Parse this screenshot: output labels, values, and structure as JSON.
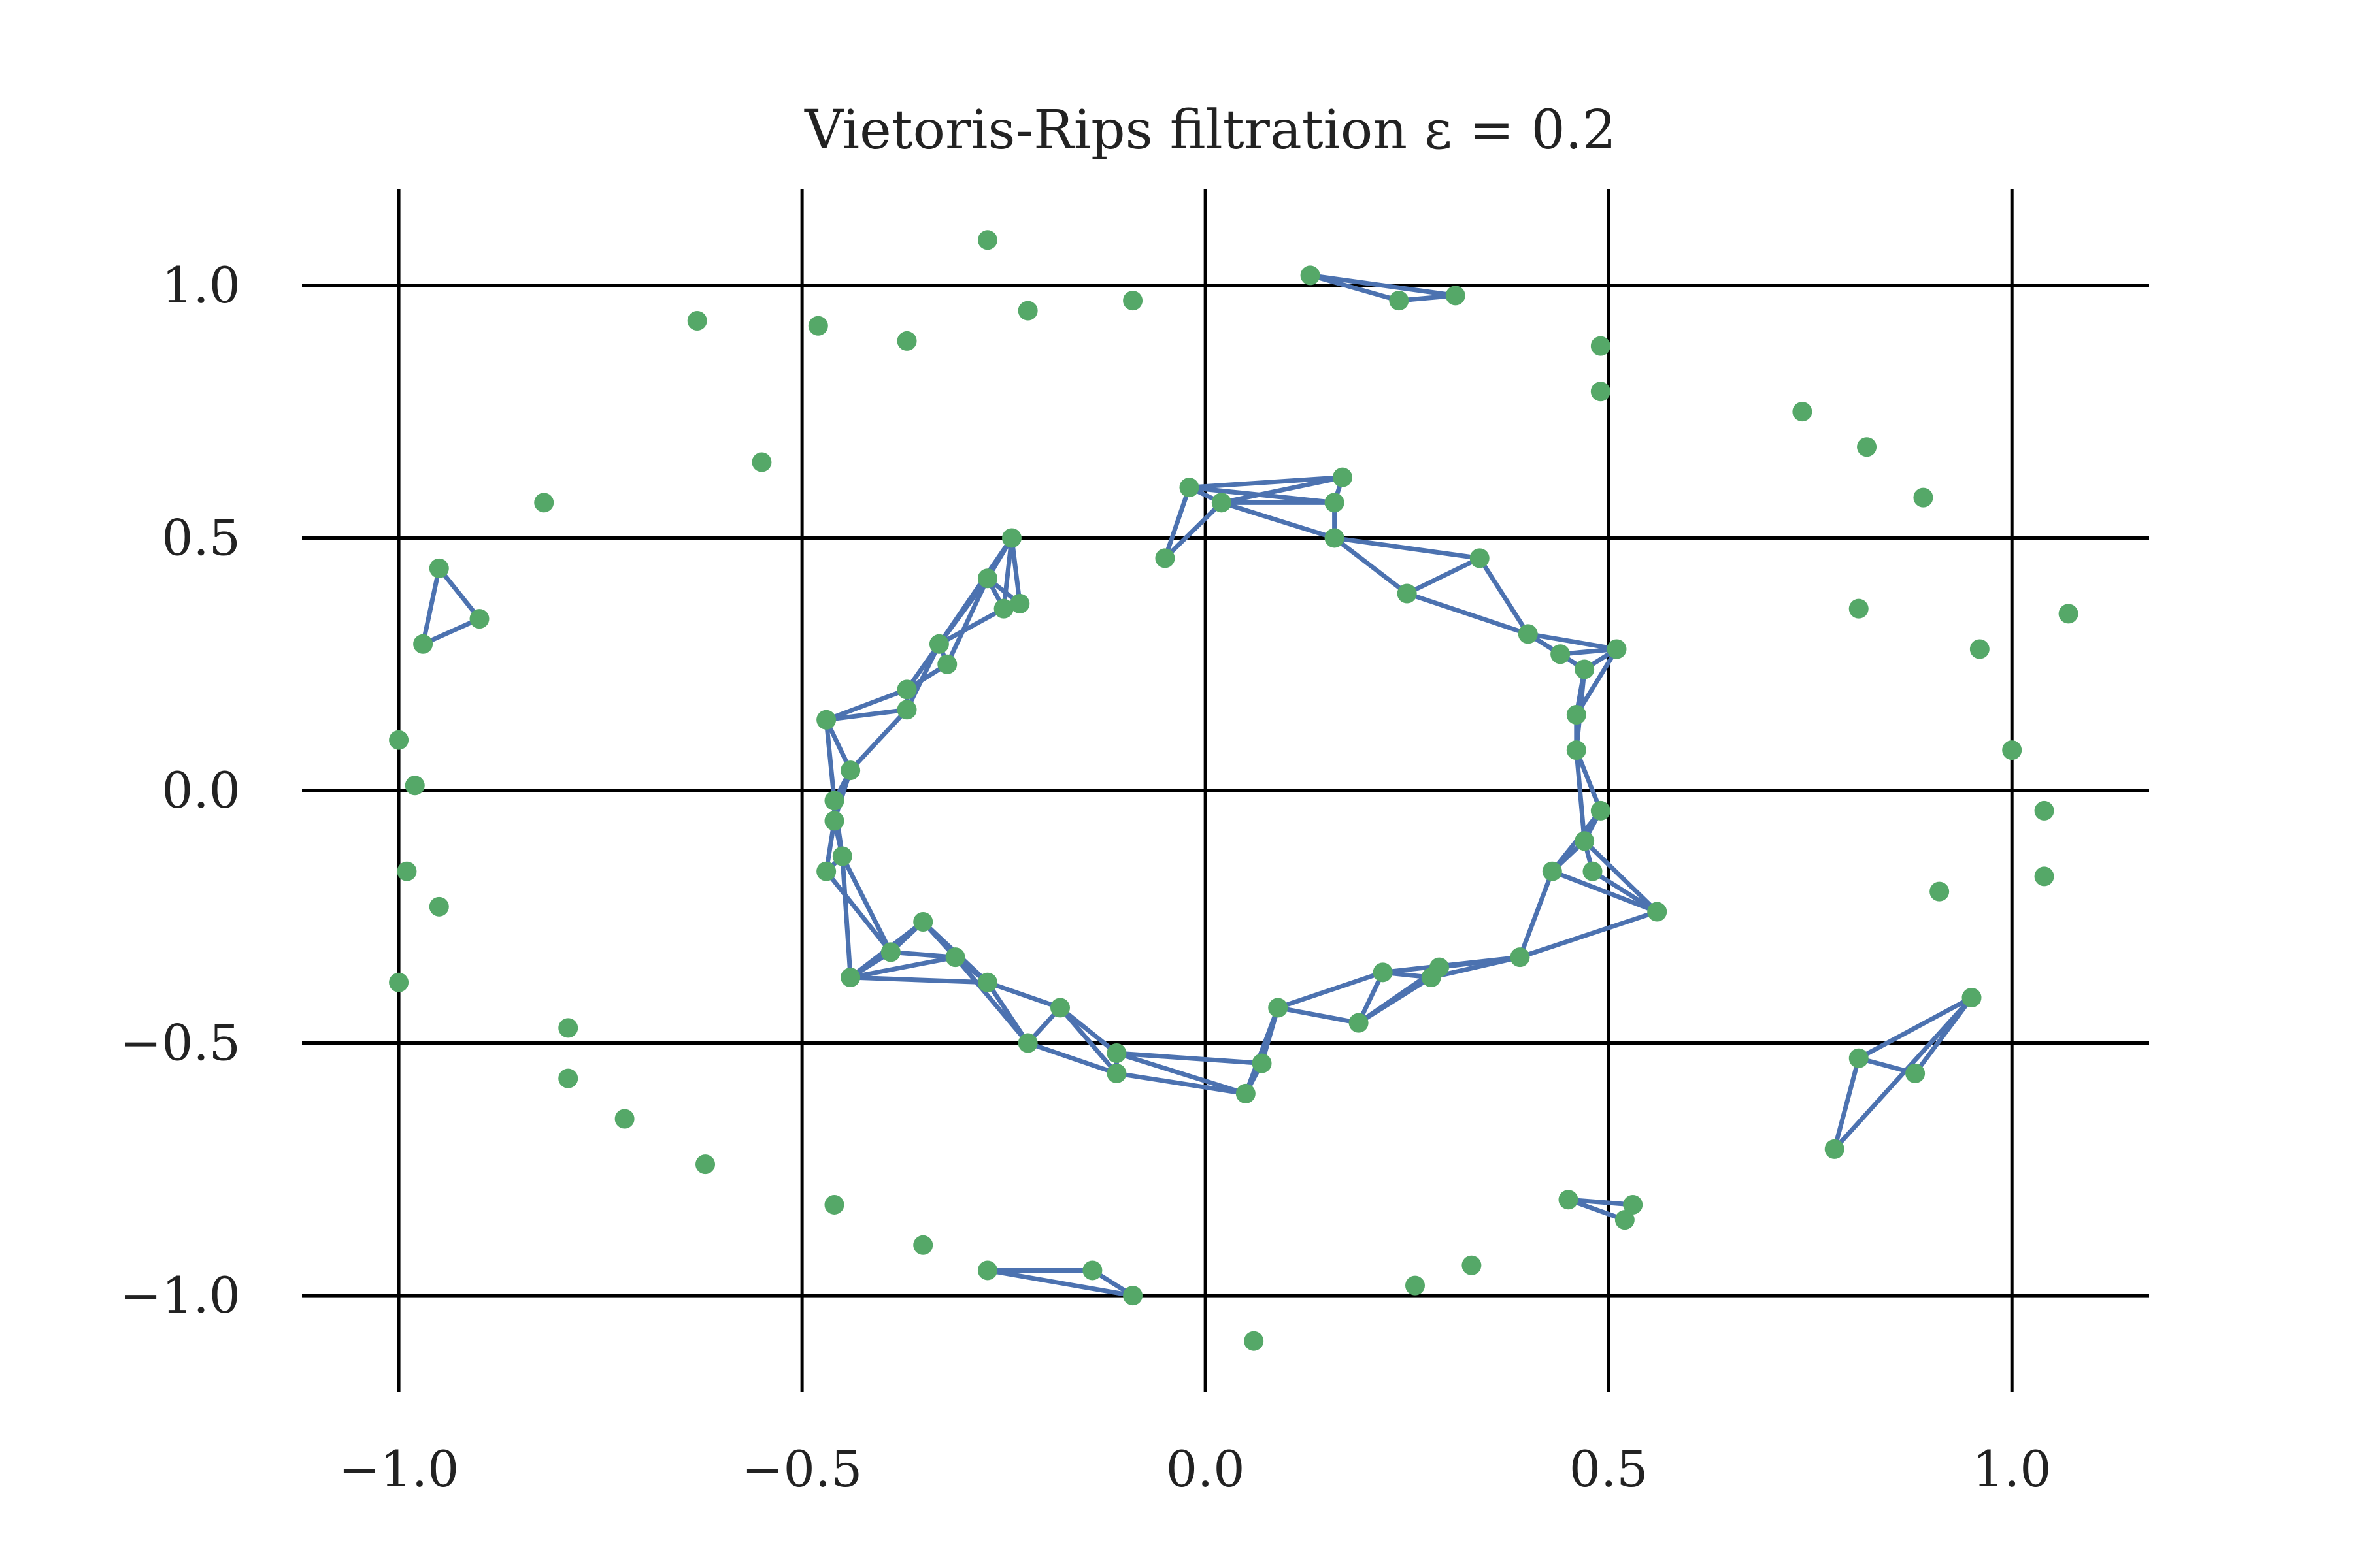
{
  "chart_data": {
    "type": "scatter",
    "title": "Vietoris-Rips filtration ε = 0.2",
    "xlabel": "",
    "ylabel": "",
    "xlim": [
      -1.12,
      1.17
    ],
    "ylim": [
      -1.19,
      1.19
    ],
    "grid": true,
    "x_ticks": [
      -1.0,
      -0.5,
      0.0,
      0.5,
      1.0
    ],
    "x_tick_labels": [
      "−1.0",
      "−0.5",
      "0.0",
      "0.5",
      "1.0"
    ],
    "y_ticks": [
      1.0,
      0.5,
      0.0,
      -0.5,
      -1.0
    ],
    "y_tick_labels": [
      "1.0",
      "0.5",
      "0.0",
      "−0.5",
      "−1.0"
    ],
    "colors": {
      "points": "#55a868",
      "edges": "#4c72b0",
      "grid": "#000000"
    },
    "points": [
      {
        "x": 0.13,
        "y": 1.02
      },
      {
        "x": 0.24,
        "y": 0.97
      },
      {
        "x": 0.31,
        "y": 0.98
      },
      {
        "x": 0.49,
        "y": 0.88
      },
      {
        "x": 0.49,
        "y": 0.79
      },
      {
        "x": 0.74,
        "y": 0.75
      },
      {
        "x": 0.82,
        "y": 0.68
      },
      {
        "x": 0.89,
        "y": 0.58
      },
      {
        "x": 0.81,
        "y": 0.36
      },
      {
        "x": 0.96,
        "y": 0.28
      },
      {
        "x": 1.07,
        "y": 0.35
      },
      {
        "x": 1.0,
        "y": 0.08
      },
      {
        "x": 1.04,
        "y": -0.04
      },
      {
        "x": 1.04,
        "y": -0.17
      },
      {
        "x": 0.91,
        "y": -0.2
      },
      {
        "x": 0.95,
        "y": -0.41
      },
      {
        "x": 0.81,
        "y": -0.53
      },
      {
        "x": 0.88,
        "y": -0.56
      },
      {
        "x": 0.78,
        "y": -0.71
      },
      {
        "x": 0.45,
        "y": -0.81
      },
      {
        "x": 0.52,
        "y": -0.85
      },
      {
        "x": 0.53,
        "y": -0.82
      },
      {
        "x": 0.33,
        "y": -0.94
      },
      {
        "x": 0.26,
        "y": -0.98
      },
      {
        "x": 0.06,
        "y": -1.09
      },
      {
        "x": -0.09,
        "y": -1.0
      },
      {
        "x": -0.14,
        "y": -0.95
      },
      {
        "x": -0.27,
        "y": -0.95
      },
      {
        "x": -0.35,
        "y": -0.9
      },
      {
        "x": -0.46,
        "y": -0.82
      },
      {
        "x": -0.62,
        "y": -0.74
      },
      {
        "x": -0.72,
        "y": -0.65
      },
      {
        "x": -0.79,
        "y": -0.57
      },
      {
        "x": -0.79,
        "y": -0.47
      },
      {
        "x": -1.0,
        "y": -0.38
      },
      {
        "x": -0.95,
        "y": -0.23
      },
      {
        "x": -0.99,
        "y": -0.16
      },
      {
        "x": -0.98,
        "y": 0.01
      },
      {
        "x": -1.0,
        "y": 0.1
      },
      {
        "x": -0.97,
        "y": 0.29
      },
      {
        "x": -0.95,
        "y": 0.44
      },
      {
        "x": -0.9,
        "y": 0.34
      },
      {
        "x": -0.82,
        "y": 0.57
      },
      {
        "x": -0.55,
        "y": 0.65
      },
      {
        "x": -0.63,
        "y": 0.93
      },
      {
        "x": -0.48,
        "y": 0.92
      },
      {
        "x": -0.37,
        "y": 0.89
      },
      {
        "x": -0.27,
        "y": 1.09
      },
      {
        "x": -0.22,
        "y": 0.95
      },
      {
        "x": -0.09,
        "y": 0.97
      },
      {
        "x": -0.02,
        "y": 0.6
      },
      {
        "x": 0.02,
        "y": 0.57
      },
      {
        "x": 0.17,
        "y": 0.62
      },
      {
        "x": 0.16,
        "y": 0.57
      },
      {
        "x": -0.05,
        "y": 0.46
      },
      {
        "x": 0.16,
        "y": 0.5
      },
      {
        "x": 0.34,
        "y": 0.46
      },
      {
        "x": 0.25,
        "y": 0.39
      },
      {
        "x": 0.4,
        "y": 0.31
      },
      {
        "x": 0.44,
        "y": 0.27
      },
      {
        "x": 0.51,
        "y": 0.28
      },
      {
        "x": 0.47,
        "y": 0.24
      },
      {
        "x": 0.46,
        "y": 0.15
      },
      {
        "x": 0.46,
        "y": 0.08
      },
      {
        "x": 0.49,
        "y": -0.04
      },
      {
        "x": 0.47,
        "y": -0.1
      },
      {
        "x": 0.43,
        "y": -0.16
      },
      {
        "x": 0.48,
        "y": -0.16
      },
      {
        "x": 0.56,
        "y": -0.24
      },
      {
        "x": 0.39,
        "y": -0.33
      },
      {
        "x": 0.29,
        "y": -0.35
      },
      {
        "x": 0.28,
        "y": -0.37
      },
      {
        "x": 0.22,
        "y": -0.36
      },
      {
        "x": 0.19,
        "y": -0.46
      },
      {
        "x": 0.09,
        "y": -0.43
      },
      {
        "x": 0.07,
        "y": -0.54
      },
      {
        "x": 0.05,
        "y": -0.6
      },
      {
        "x": -0.11,
        "y": -0.52
      },
      {
        "x": -0.11,
        "y": -0.56
      },
      {
        "x": -0.18,
        "y": -0.43
      },
      {
        "x": -0.22,
        "y": -0.5
      },
      {
        "x": -0.27,
        "y": -0.38
      },
      {
        "x": -0.31,
        "y": -0.33
      },
      {
        "x": -0.35,
        "y": -0.26
      },
      {
        "x": -0.39,
        "y": -0.32
      },
      {
        "x": -0.44,
        "y": -0.37
      },
      {
        "x": -0.47,
        "y": -0.16
      },
      {
        "x": -0.45,
        "y": -0.13
      },
      {
        "x": -0.46,
        "y": -0.06
      },
      {
        "x": -0.46,
        "y": -0.02
      },
      {
        "x": -0.44,
        "y": 0.04
      },
      {
        "x": -0.47,
        "y": 0.14
      },
      {
        "x": -0.37,
        "y": 0.16
      },
      {
        "x": -0.37,
        "y": 0.2
      },
      {
        "x": -0.32,
        "y": 0.25
      },
      {
        "x": -0.33,
        "y": 0.29
      },
      {
        "x": -0.27,
        "y": 0.42
      },
      {
        "x": -0.25,
        "y": 0.36
      },
      {
        "x": -0.23,
        "y": 0.37
      },
      {
        "x": -0.24,
        "y": 0.5
      }
    ],
    "edges": [
      [
        0,
        1
      ],
      [
        1,
        2
      ],
      [
        0,
        2
      ],
      [
        15,
        16
      ],
      [
        16,
        17
      ],
      [
        15,
        17
      ],
      [
        16,
        18
      ],
      [
        15,
        18
      ],
      [
        19,
        20
      ],
      [
        19,
        21
      ],
      [
        20,
        21
      ],
      [
        25,
        26
      ],
      [
        26,
        27
      ],
      [
        25,
        27
      ],
      [
        39,
        40
      ],
      [
        40,
        41
      ],
      [
        39,
        41
      ],
      [
        50,
        51
      ],
      [
        51,
        52
      ],
      [
        52,
        53
      ],
      [
        50,
        53
      ],
      [
        51,
        53
      ],
      [
        50,
        52
      ],
      [
        50,
        54
      ],
      [
        51,
        54
      ],
      [
        51,
        55
      ],
      [
        53,
        55
      ],
      [
        55,
        56
      ],
      [
        55,
        57
      ],
      [
        56,
        57
      ],
      [
        56,
        58
      ],
      [
        57,
        58
      ],
      [
        58,
        59
      ],
      [
        58,
        60
      ],
      [
        59,
        61
      ],
      [
        60,
        61
      ],
      [
        59,
        60
      ],
      [
        58,
        61
      ],
      [
        61,
        62
      ],
      [
        60,
        62
      ],
      [
        62,
        63
      ],
      [
        61,
        63
      ],
      [
        63,
        64
      ],
      [
        63,
        65
      ],
      [
        64,
        65
      ],
      [
        64,
        66
      ],
      [
        65,
        66
      ],
      [
        65,
        67
      ],
      [
        65,
        68
      ],
      [
        66,
        68
      ],
      [
        67,
        68
      ],
      [
        66,
        69
      ],
      [
        68,
        69
      ],
      [
        69,
        70
      ],
      [
        69,
        71
      ],
      [
        70,
        71
      ],
      [
        69,
        72
      ],
      [
        71,
        72
      ],
      [
        72,
        73
      ],
      [
        71,
        73
      ],
      [
        70,
        73
      ],
      [
        72,
        74
      ],
      [
        73,
        74
      ],
      [
        74,
        75
      ],
      [
        74,
        76
      ],
      [
        75,
        76
      ],
      [
        76,
        77
      ],
      [
        76,
        78
      ],
      [
        77,
        78
      ],
      [
        75,
        77
      ],
      [
        77,
        79
      ],
      [
        78,
        80
      ],
      [
        79,
        80
      ],
      [
        78,
        79
      ],
      [
        79,
        81
      ],
      [
        80,
        81
      ],
      [
        81,
        82
      ],
      [
        80,
        82
      ],
      [
        82,
        83
      ],
      [
        81,
        83
      ],
      [
        82,
        84
      ],
      [
        83,
        84
      ],
      [
        82,
        85
      ],
      [
        84,
        85
      ],
      [
        83,
        85
      ],
      [
        81,
        85
      ],
      [
        84,
        86
      ],
      [
        86,
        87
      ],
      [
        84,
        87
      ],
      [
        85,
        87
      ],
      [
        86,
        88
      ],
      [
        87,
        88
      ],
      [
        87,
        89
      ],
      [
        88,
        89
      ],
      [
        88,
        90
      ],
      [
        89,
        90
      ],
      [
        90,
        91
      ],
      [
        89,
        91
      ],
      [
        91,
        92
      ],
      [
        92,
        93
      ],
      [
        91,
        93
      ],
      [
        90,
        92
      ],
      [
        93,
        94
      ],
      [
        94,
        95
      ],
      [
        93,
        95
      ],
      [
        92,
        95
      ],
      [
        95,
        96
      ],
      [
        94,
        96
      ],
      [
        95,
        97
      ],
      [
        96,
        97
      ],
      [
        96,
        98
      ],
      [
        97,
        98
      ],
      [
        98,
        99
      ],
      [
        97,
        99
      ],
      [
        96,
        99
      ],
      [
        95,
        99
      ]
    ]
  }
}
